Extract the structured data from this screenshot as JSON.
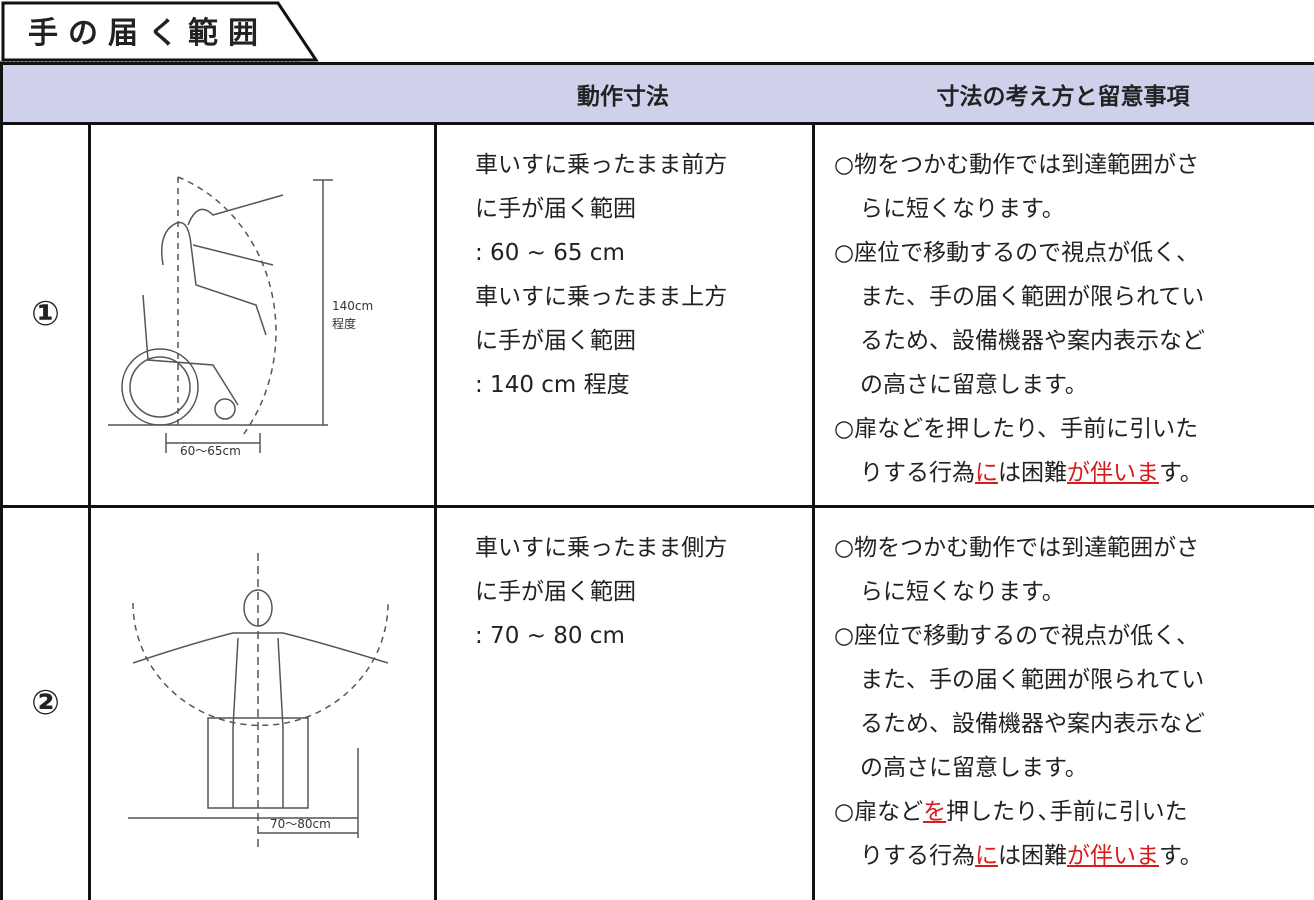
{
  "header": {
    "title": "手の届く範囲"
  },
  "table": {
    "columns": [
      "動作寸法",
      "寸法の考え方と留意事項"
    ],
    "rows": [
      {
        "number": "①",
        "figure_labels": [
          "140cm",
          "程度",
          "60〜65cm"
        ],
        "dimensions": [
          "車いすに乗ったまま前方",
          "に手が届く範囲",
          ": 60 ~ 65 cm",
          "車いすに乗ったまま上方",
          "に手が届く範囲",
          ": 140 cm 程度"
        ],
        "notes": [
          [
            {
              "text": "○物をつかむ動作では到達範囲がさ"
            }
          ],
          [
            {
              "text": "らに短くなります。"
            }
          ],
          [
            {
              "text": "○座位で移動するので視点が低く、"
            }
          ],
          [
            {
              "text": "また、手の届く範囲が限られてい"
            }
          ],
          [
            {
              "text": "るため、設備機器や案内表示など"
            }
          ],
          [
            {
              "text": "の高さに留意します。"
            }
          ],
          [
            {
              "text": "○扉などを押したり、手前に引いた"
            }
          ],
          [
            {
              "text": "りする行為"
            },
            {
              "text": "に",
              "highlight": true
            },
            {
              "text": "は困難"
            },
            {
              "text": "が伴いま",
              "highlight": true
            },
            {
              "text": "す。"
            }
          ]
        ]
      },
      {
        "number": "②",
        "figure_labels": [
          "70〜80cm"
        ],
        "dimensions": [
          "車いすに乗ったまま側方",
          "に手が届く範囲",
          ": 70 ~ 80 cm"
        ],
        "notes": [
          [
            {
              "text": "○物をつかむ動作では到達範囲がさ"
            }
          ],
          [
            {
              "text": "らに短くなります。"
            }
          ],
          [
            {
              "text": "○座位で移動するので視点が低く、"
            }
          ],
          [
            {
              "text": "また、手の届く範囲が限られてい"
            }
          ],
          [
            {
              "text": "るため、設備機器や案内表示など"
            }
          ],
          [
            {
              "text": "の高さに留意します。"
            }
          ],
          [
            {
              "text": "○扉など"
            },
            {
              "text": "を",
              "highlight": true
            },
            {
              "text": "押したり､手前に引いた"
            }
          ],
          [
            {
              "text": "りする行為"
            },
            {
              "text": "に",
              "highlight": true
            },
            {
              "text": "は困難"
            },
            {
              "text": "が伴いま",
              "highlight": true
            },
            {
              "text": "す。"
            }
          ]
        ]
      }
    ]
  }
}
